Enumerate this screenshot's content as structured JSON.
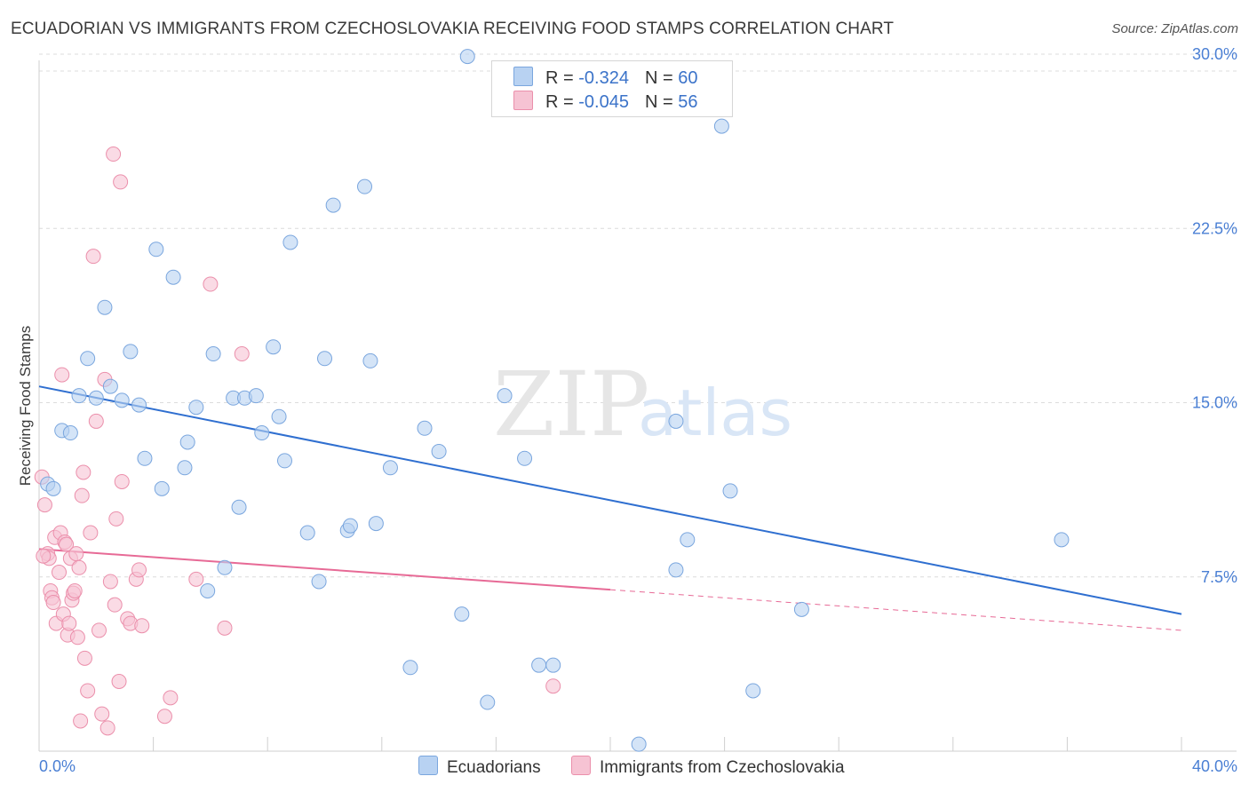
{
  "title": "ECUADORIAN VS IMMIGRANTS FROM CZECHOSLOVAKIA RECEIVING FOOD STAMPS CORRELATION CHART",
  "source": "Source: ZipAtlas.com",
  "watermark": {
    "zip": "ZIP",
    "atlas": "atlas"
  },
  "legend": {
    "series1": {
      "r_label": "R = ",
      "r_value": "-0.324",
      "n_label": "N = ",
      "n_value": "60"
    },
    "series2": {
      "r_label": "R = ",
      "r_value": "-0.045",
      "n_label": "N = ",
      "n_value": "56"
    }
  },
  "colors": {
    "blue_fill": "#b8d2f2",
    "blue_stroke": "#7aa6de",
    "blue_line": "#2f6fd0",
    "pink_fill": "#f6c3d3",
    "pink_stroke": "#eb8fab",
    "pink_line": "#e76a96",
    "grid": "#dcdcdc",
    "tick_text": "#4a7fd4"
  },
  "chart_data": {
    "type": "scatter",
    "title": "ECUADORIAN VS IMMIGRANTS FROM CZECHOSLOVAKIA RECEIVING FOOD STAMPS CORRELATION CHART",
    "xlabel": "",
    "ylabel": "Receiving Food Stamps",
    "xlim": [
      0,
      40
    ],
    "ylim": [
      0,
      30
    ],
    "x_tick_labels": [
      "0.0%",
      "40.0%"
    ],
    "y_ticks": [
      7.5,
      15.0,
      22.5,
      30.0
    ],
    "y_tick_labels": [
      "7.5%",
      "15.0%",
      "22.5%",
      "30.0%"
    ],
    "grid": true,
    "series": [
      {
        "name": "Ecuadorians",
        "color": "blue",
        "r": -0.324,
        "n": 60,
        "trend": {
          "x0": 0,
          "y0": 15.7,
          "x1": 40,
          "y1": 5.9,
          "dashed_from": null
        },
        "points": [
          [
            0.3,
            11.5
          ],
          [
            0.5,
            11.3
          ],
          [
            0.8,
            13.8
          ],
          [
            1.1,
            13.7
          ],
          [
            1.4,
            15.3
          ],
          [
            1.7,
            16.9
          ],
          [
            2.0,
            15.2
          ],
          [
            2.3,
            19.1
          ],
          [
            2.5,
            15.7
          ],
          [
            2.9,
            15.1
          ],
          [
            3.2,
            17.2
          ],
          [
            3.5,
            14.9
          ],
          [
            3.7,
            12.6
          ],
          [
            4.1,
            21.6
          ],
          [
            4.3,
            11.3
          ],
          [
            4.7,
            20.4
          ],
          [
            5.1,
            12.2
          ],
          [
            5.2,
            13.3
          ],
          [
            5.5,
            14.8
          ],
          [
            5.9,
            6.9
          ],
          [
            6.1,
            17.1
          ],
          [
            6.5,
            7.9
          ],
          [
            6.8,
            15.2
          ],
          [
            7.0,
            10.5
          ],
          [
            7.2,
            15.2
          ],
          [
            7.6,
            15.3
          ],
          [
            7.8,
            13.7
          ],
          [
            8.2,
            17.4
          ],
          [
            8.4,
            14.4
          ],
          [
            8.6,
            12.5
          ],
          [
            8.8,
            21.9
          ],
          [
            9.4,
            9.4
          ],
          [
            9.8,
            7.3
          ],
          [
            10.0,
            16.9
          ],
          [
            10.3,
            23.5
          ],
          [
            10.8,
            9.5
          ],
          [
            10.9,
            9.7
          ],
          [
            11.4,
            24.3
          ],
          [
            11.6,
            16.8
          ],
          [
            11.8,
            9.8
          ],
          [
            12.3,
            12.2
          ],
          [
            13.0,
            3.6
          ],
          [
            13.5,
            13.9
          ],
          [
            14.0,
            12.9
          ],
          [
            14.8,
            5.9
          ],
          [
            15.0,
            29.9
          ],
          [
            15.7,
            2.1
          ],
          [
            16.3,
            15.3
          ],
          [
            17.0,
            12.6
          ],
          [
            17.5,
            3.7
          ],
          [
            18.0,
            3.7
          ],
          [
            21.0,
            0.3
          ],
          [
            22.3,
            7.8
          ],
          [
            22.3,
            14.2
          ],
          [
            22.7,
            9.1
          ],
          [
            23.9,
            26.9
          ],
          [
            24.2,
            11.2
          ],
          [
            25.0,
            2.6
          ],
          [
            26.7,
            6.1
          ],
          [
            35.8,
            9.1
          ]
        ]
      },
      {
        "name": "Immigrants from Czechoslovakia",
        "color": "pink",
        "r": -0.045,
        "n": 56,
        "trend": {
          "x0": 0,
          "y0": 8.7,
          "x1": 40,
          "y1": 5.2,
          "dashed_from": 20.0
        },
        "points": [
          [
            0.1,
            11.8
          ],
          [
            0.2,
            10.6
          ],
          [
            0.3,
            8.5
          ],
          [
            0.35,
            8.3
          ],
          [
            0.4,
            6.9
          ],
          [
            0.45,
            6.6
          ],
          [
            0.5,
            6.4
          ],
          [
            0.55,
            9.2
          ],
          [
            0.6,
            5.5
          ],
          [
            0.7,
            7.7
          ],
          [
            0.75,
            9.4
          ],
          [
            0.8,
            16.2
          ],
          [
            0.85,
            5.9
          ],
          [
            0.9,
            9.0
          ],
          [
            0.95,
            8.9
          ],
          [
            1.0,
            5.0
          ],
          [
            1.05,
            5.5
          ],
          [
            1.1,
            8.3
          ],
          [
            1.15,
            6.5
          ],
          [
            1.2,
            6.8
          ],
          [
            1.25,
            6.9
          ],
          [
            1.3,
            8.5
          ],
          [
            1.35,
            4.9
          ],
          [
            1.4,
            7.9
          ],
          [
            1.45,
            1.3
          ],
          [
            1.5,
            11.0
          ],
          [
            1.55,
            12.0
          ],
          [
            1.6,
            4.0
          ],
          [
            1.7,
            2.6
          ],
          [
            1.8,
            9.4
          ],
          [
            1.9,
            21.3
          ],
          [
            2.0,
            14.2
          ],
          [
            2.1,
            5.2
          ],
          [
            2.2,
            1.6
          ],
          [
            2.3,
            16.0
          ],
          [
            2.4,
            1.0
          ],
          [
            2.5,
            7.3
          ],
          [
            2.6,
            25.7
          ],
          [
            2.65,
            6.3
          ],
          [
            2.7,
            10.0
          ],
          [
            2.8,
            3.0
          ],
          [
            2.85,
            24.5
          ],
          [
            2.9,
            11.6
          ],
          [
            3.1,
            5.7
          ],
          [
            3.2,
            5.5
          ],
          [
            3.4,
            7.4
          ],
          [
            3.5,
            7.8
          ],
          [
            3.6,
            5.4
          ],
          [
            4.4,
            1.5
          ],
          [
            4.6,
            2.3
          ],
          [
            5.5,
            7.4
          ],
          [
            6.0,
            20.1
          ],
          [
            6.5,
            5.3
          ],
          [
            7.1,
            17.1
          ],
          [
            18.0,
            2.8
          ],
          [
            0.15,
            8.4
          ]
        ]
      }
    ]
  },
  "bottom_legend": {
    "series1": "Ecuadorians",
    "series2": "Immigrants from Czechoslovakia"
  }
}
